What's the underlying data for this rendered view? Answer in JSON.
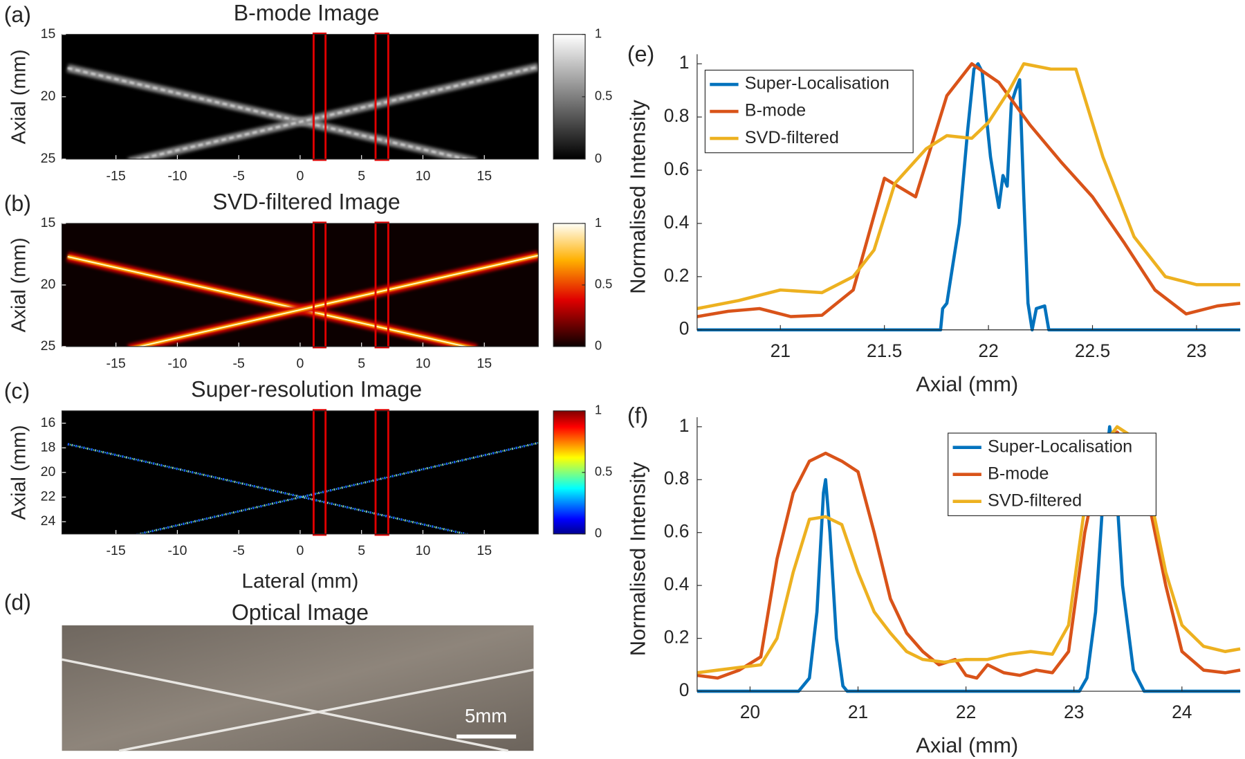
{
  "chart_data": [
    {
      "type": "image",
      "panel_label": "(a)",
      "title": "B-mode Image",
      "y_label": "Axial (mm)",
      "xlim": [
        -19.4,
        19.4
      ],
      "xticks": [
        -15,
        -10,
        -5,
        0,
        5,
        10,
        15
      ],
      "ylim": [
        15,
        25
      ],
      "yticks": [
        15,
        20,
        25
      ],
      "y_reversed": true,
      "colorbar": {
        "colormap": "gray",
        "lim": [
          0,
          1
        ],
        "ticks": [
          0,
          0.5,
          1
        ]
      }
    },
    {
      "type": "image",
      "panel_label": "(b)",
      "title": "SVD-filtered Image",
      "y_label": "Axial (mm)",
      "xlim": [
        -19.4,
        19.4
      ],
      "xticks": [
        -15,
        -10,
        -5,
        0,
        5,
        10,
        15
      ],
      "ylim": [
        15,
        25
      ],
      "yticks": [
        15,
        20,
        25
      ],
      "y_reversed": true,
      "colorbar": {
        "colormap": "hot",
        "lim": [
          0,
          1
        ],
        "ticks": [
          0,
          0.5,
          1
        ]
      }
    },
    {
      "type": "image",
      "panel_label": "(c)",
      "title": "Super-resolution Image",
      "y_label": "Axial (mm)",
      "x_label": "Lateral (mm)",
      "xlim": [
        -19.4,
        19.4
      ],
      "xticks": [
        -15,
        -10,
        -5,
        0,
        5,
        10,
        15
      ],
      "ylim": [
        15,
        25
      ],
      "yticks": [
        16,
        18,
        20,
        22,
        24
      ],
      "y_reversed": true,
      "colorbar": {
        "colormap": "jet",
        "lim": [
          0,
          1
        ],
        "ticks": [
          0,
          0.5,
          1
        ]
      }
    },
    {
      "type": "photo",
      "panel_label": "(d)",
      "title": "Optical Image",
      "scale_bar": "5mm"
    },
    {
      "type": "line",
      "panel_label": "(e)",
      "x_label": "Axial (mm)",
      "y_label": "Normalised Intensity",
      "xlim": [
        20.6,
        23.21
      ],
      "xticks": [
        21,
        21.5,
        22,
        22.5,
        23
      ],
      "ylim": [
        0,
        1
      ],
      "yticks": [
        0,
        0.2,
        0.4,
        0.6,
        0.8,
        1
      ],
      "legend": "upper left",
      "series": [
        {
          "name": "Super-Localisation",
          "color": "#0072bd",
          "x": [
            20.6,
            21.77,
            21.78,
            21.8,
            21.82,
            21.86,
            21.9,
            21.93,
            21.95,
            21.97,
            21.99,
            22.01,
            22.03,
            22.05,
            22.07,
            22.09,
            22.11,
            22.13,
            22.15,
            22.17,
            22.19,
            22.21,
            22.23,
            22.27,
            22.29,
            23.21
          ],
          "values": [
            0,
            0,
            0.08,
            0.1,
            0.2,
            0.4,
            0.75,
            0.98,
            1,
            0.97,
            0.8,
            0.65,
            0.55,
            0.46,
            0.58,
            0.54,
            0.85,
            0.9,
            0.94,
            0.5,
            0.1,
            0,
            0.08,
            0.09,
            0,
            0
          ]
        },
        {
          "name": "B-mode",
          "color": "#d95319",
          "x": [
            20.6,
            20.75,
            20.9,
            21.05,
            21.2,
            21.35,
            21.5,
            21.65,
            21.8,
            21.92,
            22.05,
            22.2,
            22.35,
            22.5,
            22.65,
            22.8,
            22.95,
            23.1,
            23.21
          ],
          "values": [
            0.05,
            0.07,
            0.08,
            0.05,
            0.055,
            0.15,
            0.57,
            0.5,
            0.88,
            1,
            0.93,
            0.77,
            0.63,
            0.5,
            0.33,
            0.15,
            0.06,
            0.09,
            0.1
          ]
        },
        {
          "name": "SVD-filtered",
          "color": "#edb120",
          "x": [
            20.6,
            20.8,
            21.0,
            21.2,
            21.35,
            21.45,
            21.55,
            21.7,
            21.8,
            21.92,
            22.0,
            22.1,
            22.17,
            22.3,
            22.42,
            22.55,
            22.7,
            22.85,
            23.0,
            23.21
          ],
          "values": [
            0.08,
            0.11,
            0.15,
            0.14,
            0.2,
            0.3,
            0.55,
            0.68,
            0.73,
            0.72,
            0.78,
            0.9,
            1,
            0.98,
            0.98,
            0.65,
            0.35,
            0.2,
            0.17,
            0.17
          ]
        }
      ]
    },
    {
      "type": "line",
      "panel_label": "(f)",
      "x_label": "Axial (mm)",
      "y_label": "Normalised Intensity",
      "xlim": [
        19.51,
        24.54
      ],
      "xticks": [
        20,
        21,
        22,
        23,
        24
      ],
      "ylim": [
        0,
        1
      ],
      "yticks": [
        0,
        0.2,
        0.4,
        0.6,
        0.8,
        1
      ],
      "legend": "upper center",
      "series": [
        {
          "name": "Super-Localisation",
          "color": "#0072bd",
          "x": [
            19.51,
            20.45,
            20.55,
            20.62,
            20.68,
            20.7,
            20.74,
            20.8,
            20.86,
            20.9,
            23.05,
            23.12,
            23.2,
            23.28,
            23.33,
            23.38,
            23.45,
            23.55,
            23.65,
            24.54
          ],
          "values": [
            0,
            0,
            0.05,
            0.3,
            0.75,
            0.8,
            0.6,
            0.2,
            0.02,
            0,
            0,
            0.05,
            0.3,
            0.8,
            1,
            0.85,
            0.4,
            0.08,
            0,
            0
          ]
        },
        {
          "name": "B-mode",
          "color": "#d95319",
          "x": [
            19.51,
            19.7,
            19.9,
            20.1,
            20.25,
            20.4,
            20.55,
            20.7,
            20.85,
            21.0,
            21.15,
            21.3,
            21.45,
            21.6,
            21.75,
            21.9,
            22.0,
            22.1,
            22.2,
            22.35,
            22.5,
            22.65,
            22.8,
            22.95,
            23.1,
            23.25,
            23.4,
            23.55,
            23.7,
            23.85,
            24.0,
            24.2,
            24.4,
            24.54
          ],
          "values": [
            0.06,
            0.05,
            0.08,
            0.13,
            0.5,
            0.75,
            0.87,
            0.9,
            0.87,
            0.83,
            0.6,
            0.35,
            0.22,
            0.15,
            0.1,
            0.12,
            0.06,
            0.05,
            0.1,
            0.07,
            0.06,
            0.08,
            0.07,
            0.15,
            0.6,
            0.9,
            0.98,
            0.9,
            0.7,
            0.4,
            0.15,
            0.08,
            0.07,
            0.08
          ]
        },
        {
          "name": "SVD-filtered",
          "color": "#edb120",
          "x": [
            19.51,
            19.7,
            19.9,
            20.1,
            20.25,
            20.4,
            20.55,
            20.7,
            20.85,
            21.0,
            21.15,
            21.3,
            21.45,
            21.6,
            21.8,
            22.0,
            22.2,
            22.4,
            22.6,
            22.8,
            22.95,
            23.1,
            23.25,
            23.4,
            23.55,
            23.7,
            23.85,
            24.0,
            24.2,
            24.4,
            24.54
          ],
          "values": [
            0.07,
            0.08,
            0.09,
            0.1,
            0.2,
            0.45,
            0.65,
            0.66,
            0.63,
            0.45,
            0.3,
            0.22,
            0.15,
            0.12,
            0.11,
            0.12,
            0.12,
            0.14,
            0.15,
            0.14,
            0.25,
            0.7,
            0.92,
            1,
            0.96,
            0.75,
            0.45,
            0.25,
            0.17,
            0.15,
            0.16
          ]
        }
      ]
    }
  ]
}
